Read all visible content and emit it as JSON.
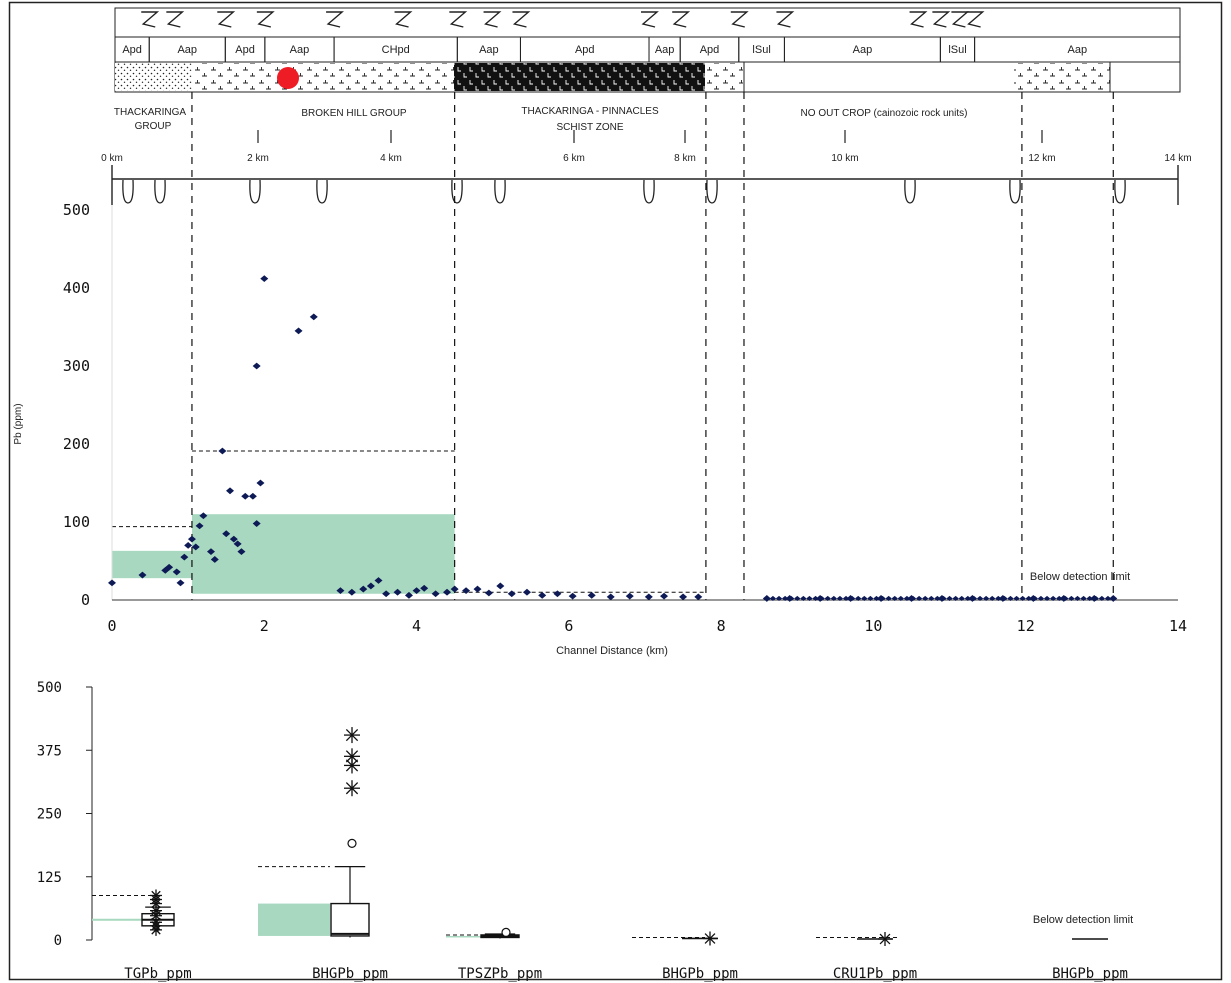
{
  "colors": {
    "green": "#a8d9c0",
    "point": "#0d1a55",
    "red": "#ee1c25"
  },
  "strip": {
    "units": [
      {
        "label": "Apd",
        "x0": 0.0,
        "x1": 0.45
      },
      {
        "label": "Aap",
        "x0": 0.45,
        "x1": 1.45
      },
      {
        "label": "Apd",
        "x0": 1.45,
        "x1": 1.97
      },
      {
        "label": "Aap",
        "x0": 1.97,
        "x1": 2.88
      },
      {
        "label": "CHpd",
        "x0": 2.88,
        "x1": 4.5
      },
      {
        "label": "Aap",
        "x0": 4.5,
        "x1": 5.33
      },
      {
        "label": "Apd",
        "x0": 5.33,
        "x1": 7.02
      },
      {
        "label": "Aap",
        "x0": 7.02,
        "x1": 7.43
      },
      {
        "label": "Apd",
        "x0": 7.43,
        "x1": 8.2
      },
      {
        "label": "lSul",
        "x0": 8.2,
        "x1": 8.8
      },
      {
        "label": "Aap",
        "x0": 8.8,
        "x1": 10.85
      },
      {
        "label": "lSul",
        "x0": 10.85,
        "x1": 11.3
      },
      {
        "label": "Aap",
        "x0": 11.3,
        "x1": 14.0
      }
    ],
    "groups": [
      {
        "line1": "THACKARINGA",
        "line2": "GROUP",
        "x": 0.5
      },
      {
        "line1": "BROKEN HILL GROUP",
        "line2": "",
        "x": 3.2
      },
      {
        "line1": "THACKARINGA - PINNACLES",
        "line2": "SCHIST ZONE",
        "x": 6.3
      },
      {
        "line1": "NO OUT CROP (cainozoic rock units)",
        "line2": "",
        "x": 10.1
      }
    ],
    "km_labels": [
      "0 km",
      "2 km",
      "4 km",
      "6 km",
      "8 km",
      "10 km",
      "12 km",
      "14 km"
    ]
  },
  "chart_data": [
    {
      "type": "scatter",
      "title": "",
      "xlabel": "Channel Distance (km)",
      "ylabel": "Pb (ppm)",
      "xlim": [
        0,
        14
      ],
      "ylim": [
        0,
        500
      ],
      "xticks": [
        0,
        2,
        4,
        6,
        8,
        10,
        12,
        14
      ],
      "yticks": [
        0,
        100,
        200,
        300,
        400,
        500
      ],
      "annotation": "Below detection limit",
      "boundaries": [
        1.05,
        4.5,
        7.8,
        8.3,
        11.95,
        13.15
      ],
      "green_boxes": [
        {
          "x0": 0.0,
          "x1": 1.05,
          "y0": 28,
          "y1": 63
        },
        {
          "x0": 1.05,
          "x1": 4.5,
          "y0": 8,
          "y1": 110
        }
      ],
      "dashed_levels": [
        {
          "x0": 0.0,
          "x1": 1.05,
          "y": 94
        },
        {
          "x0": 1.05,
          "x1": 4.5,
          "y": 191
        },
        {
          "x0": 4.5,
          "x1": 7.8,
          "y": 10
        }
      ],
      "series": [
        {
          "values": [
            [
              0.0,
              22
            ],
            [
              0.4,
              32
            ],
            [
              0.7,
              38
            ],
            [
              0.75,
              42
            ],
            [
              0.85,
              36
            ],
            [
              0.9,
              22
            ],
            [
              0.95,
              55
            ],
            [
              1.0,
              70
            ],
            [
              1.05,
              78
            ],
            [
              1.1,
              68
            ],
            [
              1.15,
              95
            ],
            [
              1.2,
              108
            ],
            [
              1.3,
              62
            ],
            [
              1.35,
              52
            ],
            [
              1.5,
              85
            ],
            [
              1.55,
              140
            ],
            [
              1.6,
              78
            ],
            [
              1.65,
              72
            ],
            [
              1.7,
              62
            ],
            [
              1.75,
              133
            ],
            [
              1.85,
              133
            ],
            [
              1.95,
              150
            ],
            [
              1.9,
              98
            ],
            [
              1.45,
              191
            ],
            [
              1.9,
              300
            ],
            [
              2.0,
              412
            ],
            [
              2.45,
              345
            ],
            [
              2.65,
              363
            ],
            [
              3.0,
              12
            ],
            [
              3.15,
              10
            ],
            [
              3.3,
              14
            ],
            [
              3.4,
              18
            ],
            [
              3.5,
              25
            ],
            [
              3.6,
              8
            ],
            [
              3.75,
              10
            ],
            [
              3.9,
              6
            ],
            [
              4.0,
              12
            ],
            [
              4.1,
              15
            ],
            [
              4.25,
              8
            ],
            [
              4.4,
              10
            ],
            [
              4.5,
              14
            ],
            [
              4.65,
              12
            ],
            [
              4.8,
              14
            ],
            [
              4.95,
              9
            ],
            [
              5.1,
              18
            ],
            [
              5.25,
              8
            ],
            [
              5.45,
              10
            ],
            [
              5.65,
              6
            ],
            [
              5.85,
              8
            ],
            [
              6.05,
              5
            ],
            [
              6.3,
              6
            ],
            [
              6.55,
              4
            ],
            [
              6.8,
              5
            ],
            [
              7.05,
              4
            ],
            [
              7.25,
              5
            ],
            [
              7.5,
              4
            ],
            [
              7.7,
              4
            ],
            [
              8.6,
              2
            ],
            [
              8.9,
              2
            ],
            [
              9.3,
              2
            ],
            [
              9.7,
              2
            ],
            [
              10.1,
              2
            ],
            [
              10.5,
              2
            ],
            [
              10.9,
              2
            ],
            [
              11.3,
              2
            ],
            [
              11.7,
              2
            ],
            [
              12.1,
              2
            ],
            [
              12.5,
              2
            ],
            [
              12.9,
              2
            ],
            [
              13.15,
              2
            ]
          ]
        }
      ]
    },
    {
      "type": "box",
      "ylim": [
        0,
        500
      ],
      "yticks": [
        0,
        125,
        250,
        375,
        500
      ],
      "annotation": "Below detection limit",
      "categories": [
        "TGPb_ppm",
        "BHGPb_ppm",
        "TPSZPb_ppm",
        "BHGPb_ppm",
        "CRU1Pb_ppm",
        "BHGPb_ppm"
      ],
      "boxes": [
        {
          "name": "TGPb_ppm",
          "min": 16,
          "q1": 28,
          "median": 40,
          "q3": 52,
          "max": 65,
          "outliers": [
            20,
            28,
            35,
            48,
            58,
            72,
            80,
            88
          ]
        },
        {
          "name": "BHGPb_ppm",
          "min": 5,
          "q1": 8,
          "median": 12,
          "q3": 72,
          "max": 145,
          "mild_outliers": [
            191
          ],
          "extreme_outliers": [
            300,
            345,
            363,
            405
          ]
        },
        {
          "name": "TPSZPb_ppm",
          "min": 3,
          "q1": 5,
          "median": 7,
          "q3": 10,
          "max": 12,
          "mild_outliers": [
            15
          ]
        },
        {
          "name": "BHGPb_ppm",
          "median": 3
        },
        {
          "name": "CRU1Pb_ppm",
          "median": 2
        },
        {
          "name": "BHGPb_ppm",
          "median": 2
        }
      ],
      "green_boxes": [
        {
          "index": 0,
          "y0": 38,
          "y1": 42
        },
        {
          "index": 1,
          "y0": 8,
          "y1": 72
        },
        {
          "index": 2,
          "y0": 5,
          "y1": 8
        }
      ],
      "dashed_levels": [
        {
          "index": 0,
          "y": 88
        },
        {
          "index": 1,
          "y": 145
        },
        {
          "index": 2,
          "y": 10
        },
        {
          "index": 3,
          "y": 5
        },
        {
          "index": 4,
          "y": 5
        }
      ]
    }
  ]
}
